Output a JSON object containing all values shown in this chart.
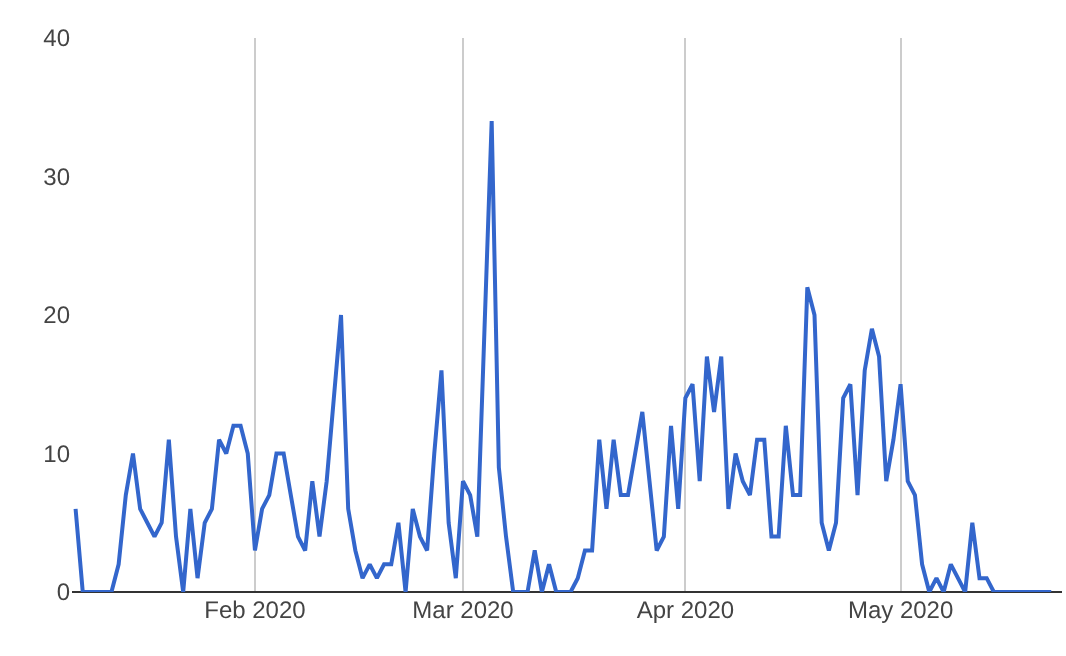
{
  "chart_data": {
    "type": "line",
    "x": [
      "2020-01-07",
      "2020-01-08",
      "2020-01-09",
      "2020-01-10",
      "2020-01-11",
      "2020-01-12",
      "2020-01-13",
      "2020-01-14",
      "2020-01-15",
      "2020-01-16",
      "2020-01-17",
      "2020-01-18",
      "2020-01-19",
      "2020-01-20",
      "2020-01-21",
      "2020-01-22",
      "2020-01-23",
      "2020-01-24",
      "2020-01-25",
      "2020-01-26",
      "2020-01-27",
      "2020-01-28",
      "2020-01-29",
      "2020-01-30",
      "2020-01-31",
      "2020-02-01",
      "2020-02-02",
      "2020-02-03",
      "2020-02-04",
      "2020-02-05",
      "2020-02-06",
      "2020-02-07",
      "2020-02-08",
      "2020-02-09",
      "2020-02-10",
      "2020-02-11",
      "2020-02-12",
      "2020-02-13",
      "2020-02-14",
      "2020-02-15",
      "2020-02-16",
      "2020-02-17",
      "2020-02-18",
      "2020-02-19",
      "2020-02-20",
      "2020-02-21",
      "2020-02-22",
      "2020-02-23",
      "2020-02-24",
      "2020-02-25",
      "2020-02-26",
      "2020-02-27",
      "2020-02-28",
      "2020-02-29",
      "2020-03-01",
      "2020-03-02",
      "2020-03-03",
      "2020-03-04",
      "2020-03-05",
      "2020-03-06",
      "2020-03-07",
      "2020-03-08",
      "2020-03-09",
      "2020-03-10",
      "2020-03-11",
      "2020-03-12",
      "2020-03-13",
      "2020-03-14",
      "2020-03-15",
      "2020-03-16",
      "2020-03-17",
      "2020-03-18",
      "2020-03-19",
      "2020-03-20",
      "2020-03-21",
      "2020-03-22",
      "2020-03-23",
      "2020-03-24",
      "2020-03-25",
      "2020-03-26",
      "2020-03-27",
      "2020-03-28",
      "2020-03-29",
      "2020-03-30",
      "2020-03-31",
      "2020-04-01",
      "2020-04-02",
      "2020-04-03",
      "2020-04-04",
      "2020-04-05",
      "2020-04-06",
      "2020-04-07",
      "2020-04-08",
      "2020-04-09",
      "2020-04-10",
      "2020-04-11",
      "2020-04-12",
      "2020-04-13",
      "2020-04-14",
      "2020-04-15",
      "2020-04-16",
      "2020-04-17",
      "2020-04-18",
      "2020-04-19",
      "2020-04-20",
      "2020-04-21",
      "2020-04-22",
      "2020-04-23",
      "2020-04-24",
      "2020-04-25",
      "2020-04-26",
      "2020-04-27",
      "2020-04-28",
      "2020-04-29",
      "2020-04-30",
      "2020-05-01",
      "2020-05-02",
      "2020-05-03",
      "2020-05-04",
      "2020-05-05",
      "2020-05-06",
      "2020-05-07",
      "2020-05-08",
      "2020-05-09",
      "2020-05-10",
      "2020-05-11",
      "2020-05-12",
      "2020-05-13",
      "2020-05-14",
      "2020-05-15",
      "2020-05-16",
      "2020-05-17",
      "2020-05-18",
      "2020-05-19",
      "2020-05-20",
      "2020-05-21",
      "2020-05-22"
    ],
    "series": [
      {
        "color": "#3366cc",
        "values": [
          6,
          0,
          0,
          0,
          0,
          0,
          2,
          7,
          10,
          6,
          5,
          4,
          5,
          11,
          4,
          0,
          6,
          1,
          5,
          6,
          11,
          10,
          12,
          12,
          10,
          3,
          6,
          7,
          10,
          10,
          7,
          4,
          3,
          8,
          4,
          8,
          14,
          20,
          6,
          3,
          1,
          2,
          1,
          2,
          2,
          5,
          0,
          6,
          4,
          3,
          10,
          16,
          5,
          1,
          8,
          7,
          4,
          19,
          34,
          9,
          4,
          0,
          0,
          0,
          3,
          0,
          2,
          0,
          0,
          0,
          1,
          3,
          3,
          11,
          6,
          11,
          7,
          7,
          10,
          13,
          8,
          3,
          4,
          12,
          6,
          14,
          15,
          8,
          17,
          13,
          17,
          6,
          10,
          8,
          7,
          11,
          11,
          4,
          4,
          12,
          7,
          7,
          22,
          20,
          5,
          3,
          5,
          14,
          15,
          7,
          16,
          19,
          17,
          8,
          11,
          15,
          8,
          7,
          2,
          0,
          1,
          0,
          2,
          1,
          0,
          5,
          1,
          1,
          0,
          0,
          0,
          0,
          0,
          0,
          0,
          0,
          0
        ]
      }
    ],
    "xlim": [
      "2020-01-06T12:00",
      "2020-05-23T12:00"
    ],
    "xticks": [
      {
        "value": "2020-02-01",
        "label": "Feb 2020"
      },
      {
        "value": "2020-03-01",
        "label": "Mar 2020"
      },
      {
        "value": "2020-04-01",
        "label": "Apr 2020"
      },
      {
        "value": "2020-05-01",
        "label": "May 2020"
      }
    ],
    "ylim": [
      0,
      40
    ],
    "yticks": [
      0,
      10,
      20,
      30,
      40
    ],
    "grid": "x",
    "marker": "none",
    "line_style": "solid"
  }
}
